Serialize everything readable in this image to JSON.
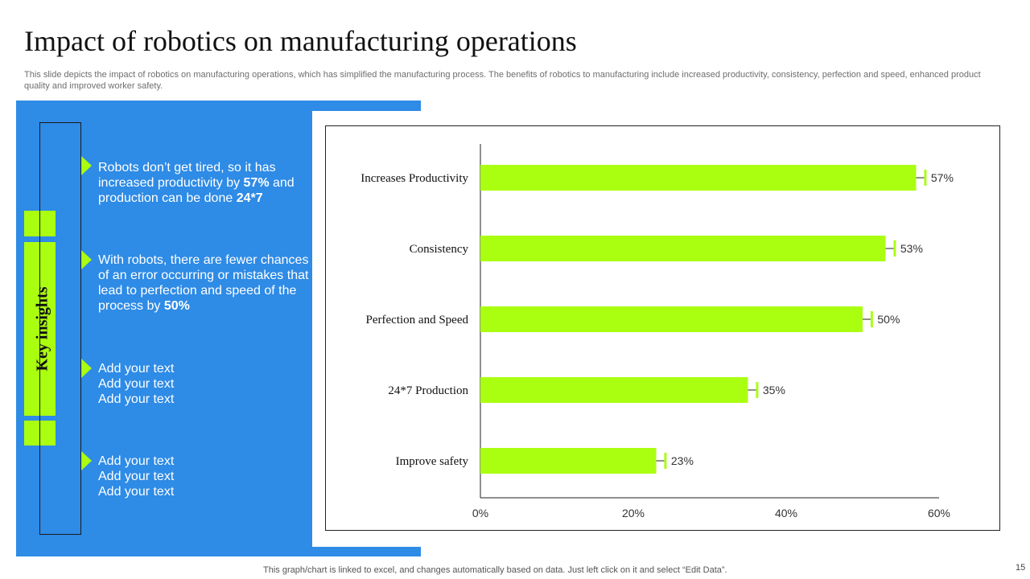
{
  "header": {
    "title": "Impact of robotics on manufacturing operations",
    "subtitle": "This slide depicts the impact of robotics on manufacturing operations, which has simplified the manufacturing process. The benefits of robotics to manufacturing include increased productivity, consistency, perfection and speed, enhanced product quality and improved worker safety."
  },
  "insights": {
    "label": "Key insights",
    "points": [
      {
        "parts": [
          {
            "text": "Robots don’t get tired, so it has increased productivity  by ",
            "bold": false
          },
          {
            "text": "57%",
            "bold": true
          },
          {
            "text": " and production can be done ",
            "bold": false
          },
          {
            "text": "24*7",
            "bold": true
          }
        ]
      },
      {
        "parts": [
          {
            "text": "With robots, there are fewer chances of an error occurring or mistakes that  lead to perfection and speed of the process by ",
            "bold": false
          },
          {
            "text": "50%",
            "bold": true
          }
        ]
      },
      {
        "lines": [
          "Add your text",
          "Add your text",
          "Add your text"
        ]
      },
      {
        "lines": [
          "Add your text",
          "Add your text",
          "Add your text"
        ]
      }
    ]
  },
  "chart_data": {
    "type": "bar",
    "orientation": "horizontal",
    "categories": [
      "Increases Productivity",
      "Consistency",
      "Perfection and Speed",
      "24*7 Production",
      "Improve  safety"
    ],
    "values": [
      57,
      53,
      50,
      35,
      23
    ],
    "error_bar": 1.2,
    "data_labels": [
      "57%",
      "53%",
      "50%",
      "35%",
      "23%"
    ],
    "xlim": [
      0,
      60
    ],
    "xticks": [
      0,
      20,
      40,
      60
    ],
    "xtick_labels": [
      "0%",
      "20%",
      "40%",
      "60%"
    ],
    "title": "",
    "xlabel": "",
    "ylabel": "",
    "grid": false,
    "legend": "none",
    "bar_color": "#aaff11"
  },
  "footer": {
    "note": "This graph/chart is linked to excel,  and changes automatically based on data. Just left click on it and select “Edit Data”.",
    "page_number": "15"
  },
  "colors": {
    "panel_blue": "#2e8be6",
    "accent_green": "#aaff11"
  }
}
